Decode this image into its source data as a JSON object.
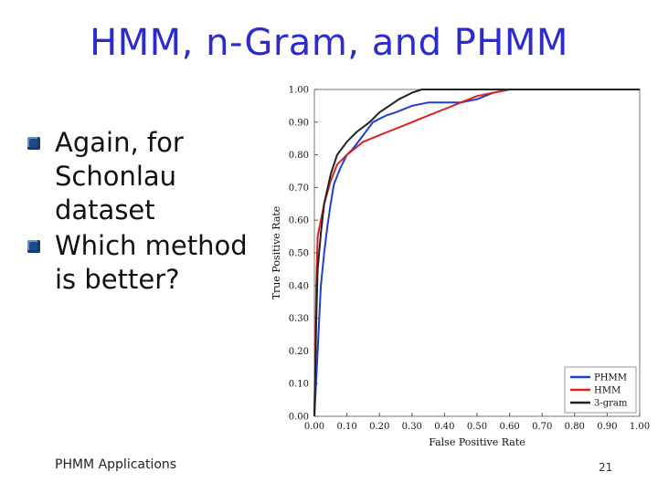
{
  "slide": {
    "title": "HMM, n-Gram, and PHMM",
    "bullets": [
      "Again, for Schonlau dataset",
      "Which method is better?"
    ],
    "footer": "PHMM Applications",
    "page_number": "21"
  },
  "chart_data": {
    "type": "line",
    "title": "",
    "xlabel": "False Positive Rate",
    "ylabel": "True Positive Rate",
    "xlim": [
      0,
      1
    ],
    "ylim": [
      0,
      1
    ],
    "xticks": [
      "0.00",
      "0.10",
      "0.20",
      "0.30",
      "0.40",
      "0.50",
      "0.60",
      "0.70",
      "0.80",
      "0.90",
      "1.00"
    ],
    "yticks": [
      "0.00",
      "0.10",
      "0.20",
      "0.30",
      "0.40",
      "0.50",
      "0.60",
      "0.70",
      "0.80",
      "0.90",
      "1.00"
    ],
    "legend_position": "bottom-right",
    "grid": false,
    "series": [
      {
        "name": "PHMM",
        "color": "#1f3fd0",
        "points": [
          [
            0,
            0
          ],
          [
            0.005,
            0.1
          ],
          [
            0.01,
            0.2
          ],
          [
            0.015,
            0.3
          ],
          [
            0.02,
            0.4
          ],
          [
            0.03,
            0.5
          ],
          [
            0.04,
            0.58
          ],
          [
            0.05,
            0.65
          ],
          [
            0.06,
            0.71
          ],
          [
            0.08,
            0.76
          ],
          [
            0.1,
            0.8
          ],
          [
            0.12,
            0.82
          ],
          [
            0.15,
            0.86
          ],
          [
            0.18,
            0.9
          ],
          [
            0.22,
            0.92
          ],
          [
            0.25,
            0.93
          ],
          [
            0.3,
            0.95
          ],
          [
            0.35,
            0.96
          ],
          [
            0.4,
            0.96
          ],
          [
            0.45,
            0.96
          ],
          [
            0.5,
            0.97
          ],
          [
            0.55,
            0.99
          ],
          [
            0.6,
            1
          ],
          [
            1,
            1
          ]
        ]
      },
      {
        "name": "HMM",
        "color": "#e01e1e",
        "points": [
          [
            0,
            0
          ],
          [
            0.003,
            0.2
          ],
          [
            0.006,
            0.4
          ],
          [
            0.01,
            0.55
          ],
          [
            0.02,
            0.6
          ],
          [
            0.03,
            0.65
          ],
          [
            0.05,
            0.72
          ],
          [
            0.07,
            0.77
          ],
          [
            0.1,
            0.8
          ],
          [
            0.15,
            0.84
          ],
          [
            0.2,
            0.86
          ],
          [
            0.25,
            0.88
          ],
          [
            0.3,
            0.9
          ],
          [
            0.35,
            0.92
          ],
          [
            0.4,
            0.94
          ],
          [
            0.45,
            0.96
          ],
          [
            0.5,
            0.98
          ],
          [
            0.55,
            0.99
          ],
          [
            0.6,
            1
          ],
          [
            1,
            1
          ]
        ]
      },
      {
        "name": "3-gram",
        "color": "#222222",
        "points": [
          [
            0,
            0
          ],
          [
            0.003,
            0.15
          ],
          [
            0.006,
            0.3
          ],
          [
            0.01,
            0.45
          ],
          [
            0.02,
            0.56
          ],
          [
            0.03,
            0.65
          ],
          [
            0.05,
            0.74
          ],
          [
            0.07,
            0.8
          ],
          [
            0.1,
            0.84
          ],
          [
            0.13,
            0.87
          ],
          [
            0.17,
            0.9
          ],
          [
            0.2,
            0.93
          ],
          [
            0.23,
            0.95
          ],
          [
            0.26,
            0.97
          ],
          [
            0.3,
            0.99
          ],
          [
            0.33,
            1
          ],
          [
            1,
            1
          ]
        ]
      }
    ]
  }
}
